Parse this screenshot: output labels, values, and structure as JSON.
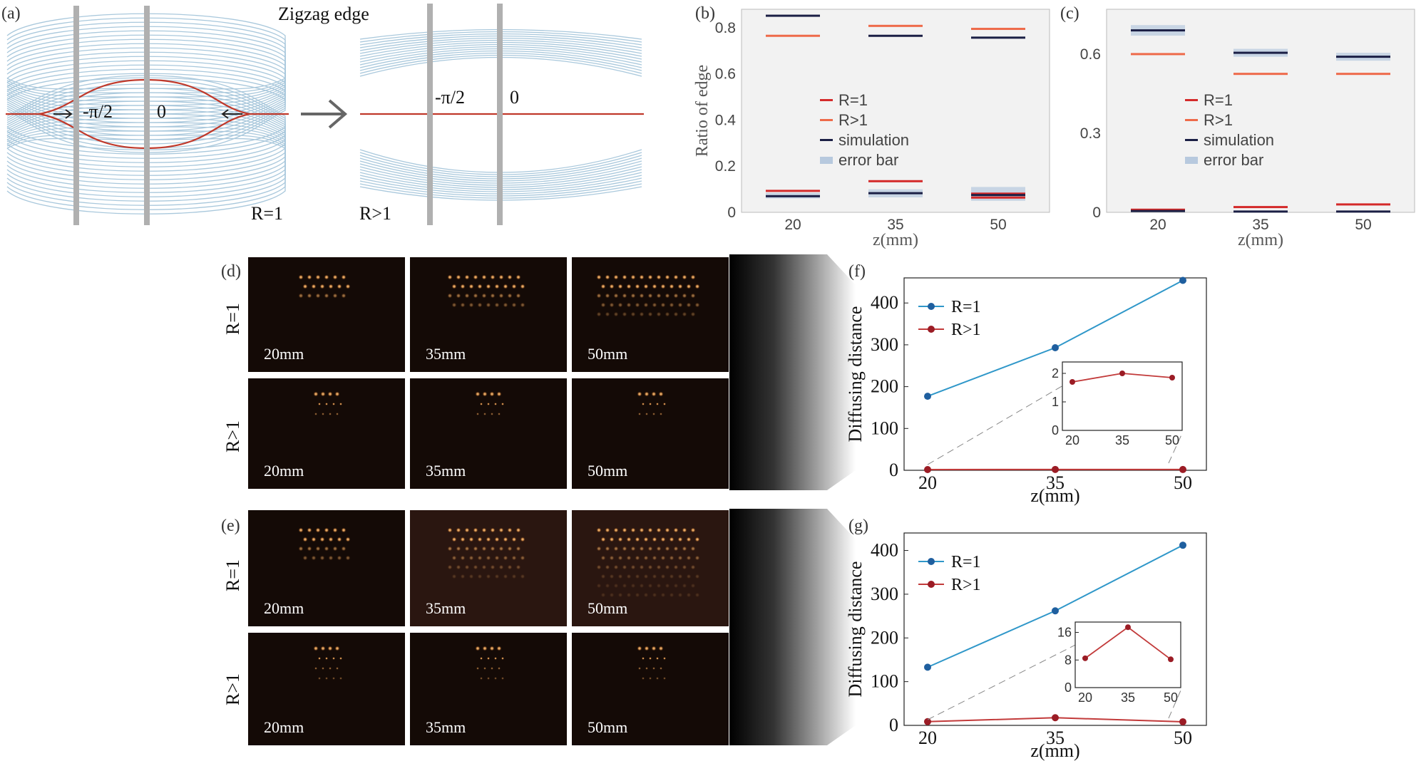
{
  "panel_labels": {
    "a": "(a)",
    "b": "(b)",
    "c": "(c)",
    "d": "(d)",
    "e": "(e)",
    "f": "(f)",
    "g": "(g)"
  },
  "panel_a": {
    "title": "Zigzag edge",
    "left_marks": [
      "-π/2",
      "0"
    ],
    "right_marks": [
      "-π/2",
      "0"
    ],
    "left_label": "R=1",
    "right_label": "R>1",
    "colors": {
      "band": "#a9c8dc",
      "edge": "#c0392b",
      "cut": "#b0b0b0"
    }
  },
  "photos": {
    "row_labels_d": [
      "R=1",
      "R>1"
    ],
    "row_labels_e": [
      "R=1",
      "R>1"
    ],
    "captions": [
      "20mm",
      "35mm",
      "50mm"
    ]
  },
  "colors": {
    "r1": "#d42a2a",
    "rg1": "#ee6a4a",
    "sim": "#1b1f45",
    "err": "#b7c9de",
    "line_r1": "#2f97c9",
    "line_rg1": "#c23a3a",
    "pt_r1": "#1f5f9f",
    "pt_rg1": "#9b1c25",
    "bg": "#f2f2f2"
  },
  "chart_data": [
    {
      "id": "b",
      "type": "bar",
      "ylabel": "Ratio of edge",
      "xlabel": "z(mm)",
      "x": [
        20,
        35,
        50
      ],
      "ylim": [
        0,
        0.88
      ],
      "yticks": [
        "0",
        "0.2",
        "0.4",
        "0.6",
        "0.8"
      ],
      "ytick_values": [
        0,
        0.2,
        0.4,
        0.6,
        0.8
      ],
      "legend": [
        "R=1",
        "R>1",
        "simulation",
        "error bar"
      ],
      "series": [
        {
          "name": "R=1",
          "values": [
            [
              0.093
            ],
            [
              0.135
            ],
            [
              0.081,
              0.064
            ]
          ]
        },
        {
          "name": "R>1",
          "values": [
            [
              0.765
            ],
            [
              0.808
            ],
            [
              0.795
            ]
          ]
        },
        {
          "name": "simulation",
          "values": [
            [
              0.852,
              0.07
            ],
            [
              0.765,
              0.083
            ],
            [
              0.757,
              0.075
            ]
          ]
        },
        {
          "name": "error bar",
          "values": [
            [
              0.07,
              0.06,
              0.085
            ],
            [
              0.083,
              0.065,
              0.1
            ],
            [
              0.075,
              0.05,
              0.11
            ]
          ]
        }
      ]
    },
    {
      "id": "c",
      "type": "bar",
      "ylabel": "",
      "xlabel": "z(mm)",
      "x": [
        20,
        35,
        50
      ],
      "ylim": [
        0,
        0.77
      ],
      "yticks": [
        "0",
        "0.3",
        "0.6"
      ],
      "ytick_values": [
        0,
        0.3,
        0.6
      ],
      "legend": [
        "R=1",
        "R>1",
        "simulation",
        "error bar"
      ],
      "series": [
        {
          "name": "R=1",
          "values": [
            [
              0.01
            ],
            [
              0.02
            ],
            [
              0.03
            ]
          ]
        },
        {
          "name": "R>1",
          "values": [
            [
              0.6
            ],
            [
              0.525
            ],
            [
              0.525
            ]
          ]
        },
        {
          "name": "simulation",
          "values": [
            [
              0.69,
              0.005
            ],
            [
              0.605,
              0.003
            ],
            [
              0.59,
              0.003
            ]
          ]
        },
        {
          "name": "error bar",
          "values": [
            [
              0.69,
              0.67,
              0.71
            ],
            [
              0.605,
              0.59,
              0.62
            ],
            [
              0.59,
              0.575,
              0.605
            ]
          ]
        }
      ]
    },
    {
      "id": "f",
      "type": "line",
      "ylabel": "Diffusing distance",
      "xlabel": "z(mm)",
      "x": [
        20,
        35,
        50
      ],
      "ylim": [
        0,
        460
      ],
      "yticks": [
        "0",
        "100",
        "200",
        "300",
        "400"
      ],
      "ytick_values": [
        0,
        100,
        200,
        300,
        400
      ],
      "series": [
        {
          "name": "R=1",
          "values": [
            177,
            293,
            454
          ]
        },
        {
          "name": "R>1",
          "values": [
            1.7,
            2.0,
            1.85
          ]
        }
      ],
      "inset": {
        "x": [
          20,
          35,
          50
        ],
        "ylim": [
          0,
          2.4
        ],
        "yticks": [
          "0",
          "1",
          "2"
        ],
        "ytick_values": [
          0,
          1,
          2
        ],
        "xticks": [
          "20",
          "35",
          "50"
        ],
        "values": [
          1.7,
          2.0,
          1.85
        ]
      }
    },
    {
      "id": "g",
      "type": "line",
      "ylabel": "Diffusing distance",
      "xlabel": "z(mm)",
      "x": [
        20,
        35,
        50
      ],
      "ylim": [
        0,
        440
      ],
      "yticks": [
        "0",
        "100",
        "200",
        "300",
        "400"
      ],
      "ytick_values": [
        0,
        100,
        200,
        300,
        400
      ],
      "series": [
        {
          "name": "R=1",
          "values": [
            133,
            262,
            412
          ]
        },
        {
          "name": "R>1",
          "values": [
            8.5,
            17.5,
            8.2
          ]
        }
      ],
      "inset": {
        "x": [
          20,
          35,
          50
        ],
        "ylim": [
          0,
          19
        ],
        "yticks": [
          "0",
          "8",
          "16"
        ],
        "ytick_values": [
          0,
          8,
          16
        ],
        "xticks": [
          "20",
          "35",
          "50"
        ],
        "values": [
          8.5,
          17.5,
          8.2
        ]
      }
    }
  ]
}
